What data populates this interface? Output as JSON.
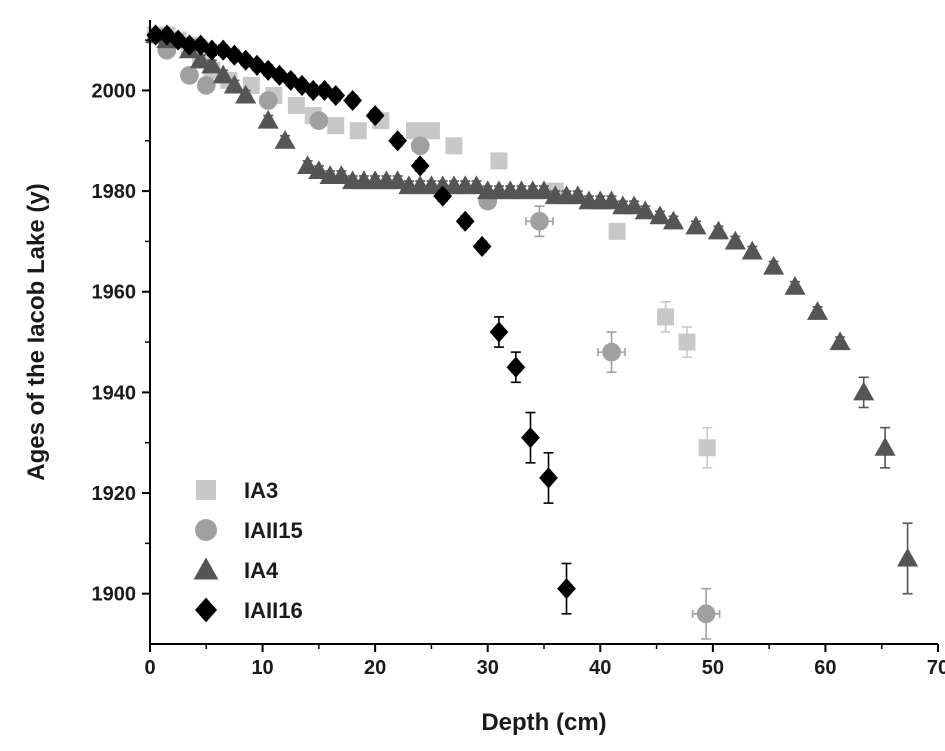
{
  "chart_data": {
    "type": "scatter",
    "title": "",
    "xlabel": "Depth (cm)",
    "ylabel": "Ages of the Iacob Lake (y)",
    "xlim": [
      0,
      70
    ],
    "ylim": [
      1890,
      2014
    ],
    "xticks": [
      0,
      10,
      20,
      30,
      40,
      50,
      60,
      70
    ],
    "yticks": [
      1900,
      1920,
      1940,
      1960,
      1980,
      2000
    ],
    "legend_position": "bottom-left",
    "grid": false,
    "series": [
      {
        "name": "IA3",
        "marker": "square",
        "color": "#c8c8c8",
        "points": [
          {
            "x": 0.5,
            "y": 2011
          },
          {
            "x": 1.5,
            "y": 2011
          },
          {
            "x": 2.5,
            "y": 2010
          },
          {
            "x": 3.5,
            "y": 2009
          },
          {
            "x": 4.5,
            "y": 2006
          },
          {
            "x": 5.5,
            "y": 2004
          },
          {
            "x": 7,
            "y": 2002
          },
          {
            "x": 9,
            "y": 2001
          },
          {
            "x": 11,
            "y": 1999
          },
          {
            "x": 13,
            "y": 1997
          },
          {
            "x": 14.5,
            "y": 1995
          },
          {
            "x": 16.5,
            "y": 1993
          },
          {
            "x": 18.5,
            "y": 1992
          },
          {
            "x": 20.5,
            "y": 1994
          },
          {
            "x": 23.5,
            "y": 1992
          },
          {
            "x": 25,
            "y": 1992
          },
          {
            "x": 27,
            "y": 1989
          },
          {
            "x": 31,
            "y": 1986
          },
          {
            "x": 36,
            "y": 1980
          },
          {
            "x": 41.5,
            "y": 1972
          },
          {
            "x": 45.8,
            "y": 1955,
            "err": 3
          },
          {
            "x": 47.7,
            "y": 1950,
            "err": 3
          },
          {
            "x": 49.5,
            "y": 1929,
            "err": 4
          }
        ]
      },
      {
        "name": "IAII15",
        "marker": "circle",
        "color": "#a0a0a0",
        "points": [
          {
            "x": 1.5,
            "y": 2008
          },
          {
            "x": 3.5,
            "y": 2003
          },
          {
            "x": 5,
            "y": 2001
          },
          {
            "x": 10.5,
            "y": 1998
          },
          {
            "x": 15,
            "y": 1994
          },
          {
            "x": 24,
            "y": 1989
          },
          {
            "x": 30,
            "y": 1978
          },
          {
            "x": 34.6,
            "y": 1974,
            "err": 3,
            "xerr": 1.2
          },
          {
            "x": 41,
            "y": 1948,
            "err": 4,
            "xerr": 1.2
          },
          {
            "x": 49.4,
            "y": 1896,
            "err": 5,
            "xerr": 1.2
          }
        ]
      },
      {
        "name": "IA4",
        "marker": "triangle",
        "color": "#555555",
        "points": [
          {
            "x": 0.5,
            "y": 2011
          },
          {
            "x": 1.5,
            "y": 2010
          },
          {
            "x": 2.5,
            "y": 2010
          },
          {
            "x": 3.5,
            "y": 2008
          },
          {
            "x": 4.5,
            "y": 2006
          },
          {
            "x": 5.5,
            "y": 2005
          },
          {
            "x": 6.5,
            "y": 2003
          },
          {
            "x": 7.5,
            "y": 2001
          },
          {
            "x": 8.5,
            "y": 1999
          },
          {
            "x": 10.5,
            "y": 1994
          },
          {
            "x": 12,
            "y": 1990
          },
          {
            "x": 14,
            "y": 1985
          },
          {
            "x": 15,
            "y": 1984
          },
          {
            "x": 16,
            "y": 1983
          },
          {
            "x": 17,
            "y": 1983
          },
          {
            "x": 18,
            "y": 1982
          },
          {
            "x": 19,
            "y": 1982
          },
          {
            "x": 20,
            "y": 1982
          },
          {
            "x": 21,
            "y": 1982
          },
          {
            "x": 22,
            "y": 1982
          },
          {
            "x": 23,
            "y": 1981
          },
          {
            "x": 24,
            "y": 1981
          },
          {
            "x": 25,
            "y": 1981
          },
          {
            "x": 26,
            "y": 1981
          },
          {
            "x": 27,
            "y": 1981
          },
          {
            "x": 28,
            "y": 1981
          },
          {
            "x": 29,
            "y": 1981
          },
          {
            "x": 30,
            "y": 1980
          },
          {
            "x": 31,
            "y": 1980
          },
          {
            "x": 32,
            "y": 1980
          },
          {
            "x": 33,
            "y": 1980
          },
          {
            "x": 34,
            "y": 1980
          },
          {
            "x": 35,
            "y": 1980
          },
          {
            "x": 36,
            "y": 1979
          },
          {
            "x": 37,
            "y": 1979
          },
          {
            "x": 38,
            "y": 1979
          },
          {
            "x": 39,
            "y": 1978
          },
          {
            "x": 40,
            "y": 1978
          },
          {
            "x": 41,
            "y": 1978
          },
          {
            "x": 42,
            "y": 1977
          },
          {
            "x": 43,
            "y": 1977
          },
          {
            "x": 44,
            "y": 1976
          },
          {
            "x": 45.3,
            "y": 1975
          },
          {
            "x": 46.5,
            "y": 1974
          },
          {
            "x": 48.5,
            "y": 1973
          },
          {
            "x": 50.5,
            "y": 1972
          },
          {
            "x": 52,
            "y": 1970
          },
          {
            "x": 53.5,
            "y": 1968
          },
          {
            "x": 55.4,
            "y": 1965
          },
          {
            "x": 57.3,
            "y": 1961
          },
          {
            "x": 59.3,
            "y": 1956
          },
          {
            "x": 61.3,
            "y": 1950
          },
          {
            "x": 63.4,
            "y": 1940,
            "err": 3
          },
          {
            "x": 65.3,
            "y": 1929,
            "err": 4
          },
          {
            "x": 67.3,
            "y": 1907,
            "err": 7
          }
        ]
      },
      {
        "name": "IAII16",
        "marker": "diamond",
        "color": "#000000",
        "points": [
          {
            "x": 0.5,
            "y": 2011
          },
          {
            "x": 1.5,
            "y": 2011
          },
          {
            "x": 2.5,
            "y": 2010
          },
          {
            "x": 3.5,
            "y": 2009
          },
          {
            "x": 4.5,
            "y": 2009
          },
          {
            "x": 5.5,
            "y": 2008
          },
          {
            "x": 6.5,
            "y": 2008
          },
          {
            "x": 7.5,
            "y": 2007
          },
          {
            "x": 8.5,
            "y": 2006
          },
          {
            "x": 9.5,
            "y": 2005
          },
          {
            "x": 10.5,
            "y": 2004
          },
          {
            "x": 11.5,
            "y": 2003
          },
          {
            "x": 12.5,
            "y": 2002
          },
          {
            "x": 13.5,
            "y": 2001
          },
          {
            "x": 14.5,
            "y": 2000
          },
          {
            "x": 15.5,
            "y": 2000
          },
          {
            "x": 16.5,
            "y": 1999
          },
          {
            "x": 18,
            "y": 1998
          },
          {
            "x": 20,
            "y": 1995
          },
          {
            "x": 22,
            "y": 1990
          },
          {
            "x": 24,
            "y": 1985
          },
          {
            "x": 26,
            "y": 1979
          },
          {
            "x": 28,
            "y": 1974
          },
          {
            "x": 29.5,
            "y": 1969
          },
          {
            "x": 31,
            "y": 1952,
            "err": 3
          },
          {
            "x": 32.5,
            "y": 1945,
            "err": 3
          },
          {
            "x": 33.8,
            "y": 1931,
            "err": 5
          },
          {
            "x": 35.4,
            "y": 1923,
            "err": 5
          },
          {
            "x": 37,
            "y": 1901,
            "err": 5
          }
        ]
      }
    ]
  }
}
